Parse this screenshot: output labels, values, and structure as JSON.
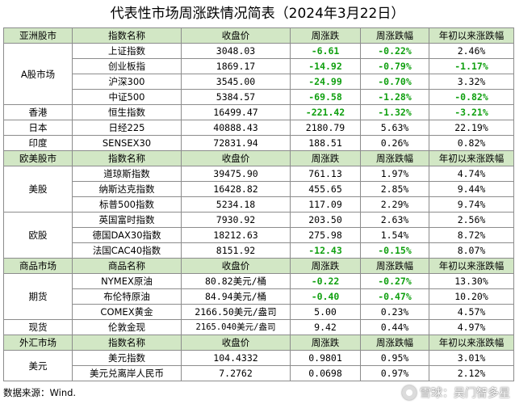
{
  "title": "代表性市场周涨跌情况简表（2024年3月22日）",
  "source": "数据来源：Wind.",
  "watermark": "雪球：吴门智多星",
  "sections": [
    {
      "header": [
        "亚洲股市",
        "指数名称",
        "收盘价",
        "周涨跌",
        "周涨跌幅",
        "年初以来涨跌幅"
      ],
      "groups": [
        {
          "label": "A股市场",
          "rows": [
            {
              "name": "上证指数",
              "close": "3048.03",
              "chg": "-6.61",
              "chg_pct": "-0.22%",
              "ytd": "2.46%"
            },
            {
              "name": "创业板指",
              "close": "1869.17",
              "chg": "-14.92",
              "chg_pct": "-0.79%",
              "ytd": "-1.17%"
            },
            {
              "name": "沪深300",
              "close": "3545.00",
              "chg": "-24.99",
              "chg_pct": "-0.70%",
              "ytd": "3.32%"
            },
            {
              "name": "中证500",
              "close": "5384.57",
              "chg": "-69.58",
              "chg_pct": "-1.28%",
              "ytd": "-0.82%"
            }
          ]
        },
        {
          "label": "香港",
          "rows": [
            {
              "name": "恒生指数",
              "close": "16499.47",
              "chg": "-221.42",
              "chg_pct": "-1.32%",
              "ytd": "-3.21%"
            }
          ]
        },
        {
          "label": "日本",
          "rows": [
            {
              "name": "日经225",
              "close": "40888.43",
              "chg": "2180.79",
              "chg_pct": "5.63%",
              "ytd": "22.19%"
            }
          ]
        },
        {
          "label": "印度",
          "rows": [
            {
              "name": "SENSEX30",
              "close": "72831.94",
              "chg": "188.51",
              "chg_pct": "0.26%",
              "ytd": "0.82%"
            }
          ]
        }
      ]
    },
    {
      "header": [
        "欧美股市",
        "指数名称",
        "收盘价",
        "周涨跌",
        "周涨跌幅",
        "年初以来涨跌幅"
      ],
      "groups": [
        {
          "label": "美股",
          "rows": [
            {
              "name": "道琼斯指数",
              "close": "39475.90",
              "chg": "761.13",
              "chg_pct": "1.97%",
              "ytd": "4.74%"
            },
            {
              "name": "纳斯达克指数",
              "close": "16428.82",
              "chg": "455.65",
              "chg_pct": "2.85%",
              "ytd": "9.44%"
            },
            {
              "name": "标普500指数",
              "close": "5234.18",
              "chg": "117.09",
              "chg_pct": "2.29%",
              "ytd": "9.74%"
            }
          ]
        },
        {
          "label": "欧股",
          "rows": [
            {
              "name": "英国富时指数",
              "close": "7930.92",
              "chg": "203.50",
              "chg_pct": "2.63%",
              "ytd": "2.56%"
            },
            {
              "name": "德国DAX30指数",
              "close": "18212.63",
              "chg": "275.98",
              "chg_pct": "1.54%",
              "ytd": "8.72%"
            },
            {
              "name": "法国CAC40指数",
              "close": "8151.92",
              "chg": "-12.43",
              "chg_pct": "-0.15%",
              "ytd": "8.07%"
            }
          ]
        }
      ]
    },
    {
      "header": [
        "商品市场",
        "商品名称",
        "收盘价",
        "周涨跌",
        "周涨跌幅",
        "年初以来涨跌幅"
      ],
      "groups": [
        {
          "label": "期货",
          "rows": [
            {
              "name": "NYMEX原油",
              "close": "80.82美元/桶",
              "chg": "-0.22",
              "chg_pct": "-0.27%",
              "ytd": "13.30%"
            },
            {
              "name": "布伦特原油",
              "close": "84.94美元/桶",
              "chg": "-0.40",
              "chg_pct": "-0.47%",
              "ytd": "10.20%"
            },
            {
              "name": "COMEX黄金",
              "close": "2166.50美元/盎司",
              "chg": "5.00",
              "chg_pct": "0.23%",
              "ytd": "4.57%"
            }
          ]
        },
        {
          "label": "现货",
          "rows": [
            {
              "name": "伦敦金现",
              "close": "2165.040美元/盎司",
              "chg": "9.42",
              "chg_pct": "0.44%",
              "ytd": "4.97%"
            }
          ]
        }
      ]
    },
    {
      "header": [
        "外汇市场",
        "指数名称",
        "收盘价",
        "周涨跌",
        "周涨跌幅",
        "年初以来涨跌幅"
      ],
      "groups": [
        {
          "label": "美元",
          "rows": [
            {
              "name": "美元指数",
              "close": "104.4332",
              "chg": "0.9801",
              "chg_pct": "0.95%",
              "ytd": "3.01%"
            },
            {
              "name": "美元兑离岸人民币",
              "close": "7.2762",
              "chg": "0.0698",
              "chg_pct": "0.97%",
              "ytd": "2.12%"
            }
          ]
        }
      ]
    }
  ],
  "colors": {
    "header_bg": "#d2e7c5",
    "negative": "#10a010",
    "highlight": "#e81e1e",
    "border": "#8c8c8c"
  }
}
